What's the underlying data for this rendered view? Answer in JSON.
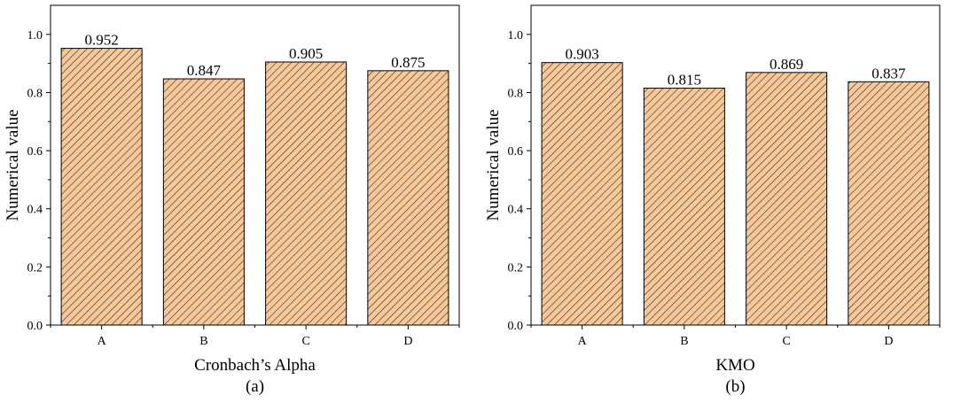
{
  "chart_data": [
    {
      "type": "bar",
      "categories": [
        "A",
        "B",
        "C",
        "D"
      ],
      "values": [
        0.952,
        0.847,
        0.905,
        0.875
      ],
      "value_labels": [
        "0.952",
        "0.847",
        "0.905",
        "0.875"
      ],
      "ylabel": "Numerical value",
      "xlabel": "Cronbach’s Alpha",
      "caption": "(a)",
      "ylim": [
        0,
        1.1
      ],
      "yticks": [
        0.0,
        0.2,
        0.4,
        0.6,
        0.8,
        1.0
      ],
      "ytick_labels": [
        "0.0",
        "0.2",
        "0.4",
        "0.6",
        "0.8",
        "1.0"
      ],
      "grid": false,
      "bar_fill": "#f6c89a",
      "hatch_color": "#3a2a1a"
    },
    {
      "type": "bar",
      "categories": [
        "A",
        "B",
        "C",
        "D"
      ],
      "values": [
        0.903,
        0.815,
        0.869,
        0.837
      ],
      "value_labels": [
        "0.903",
        "0.815",
        "0.869",
        "0.837"
      ],
      "ylabel": "Numerical value",
      "xlabel": "KMO",
      "caption": "(b)",
      "ylim": [
        0,
        1.1
      ],
      "yticks": [
        0.0,
        0.2,
        0.4,
        0.6,
        0.8,
        1.0
      ],
      "ytick_labels": [
        "0.0",
        "0.2",
        "0.4",
        "0.6",
        "0.8",
        "1.0"
      ],
      "grid": false,
      "bar_fill": "#f6c89a",
      "hatch_color": "#3a2a1a"
    }
  ]
}
